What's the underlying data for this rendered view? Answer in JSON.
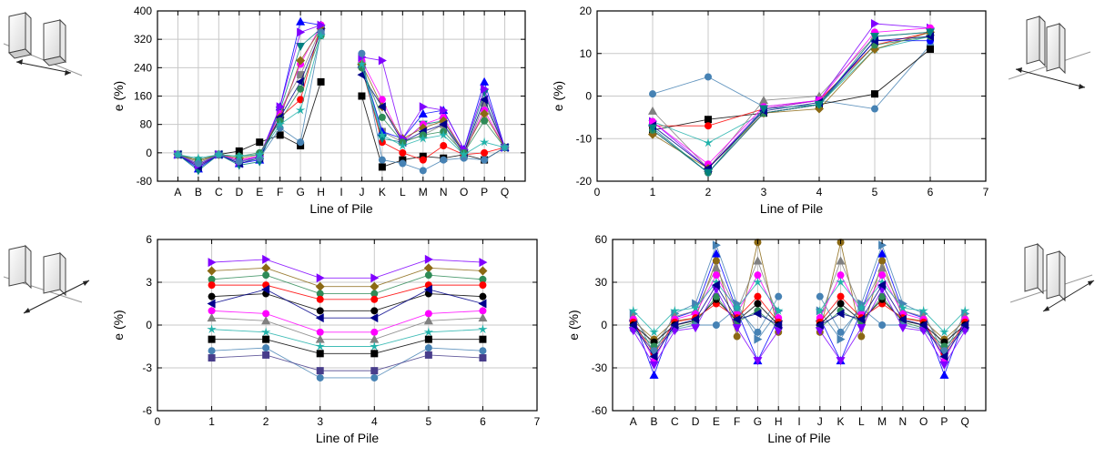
{
  "chart_data": [
    {
      "type": "scatter",
      "xlabel": "Line of Pile",
      "ylabel": "e (%)",
      "xcategories": [
        "A",
        "B",
        "C",
        "D",
        "E",
        "F",
        "G",
        "H",
        "I",
        "J",
        "K",
        "L",
        "M",
        "N",
        "O",
        "P",
        "Q"
      ],
      "ylim": [
        -80,
        400
      ],
      "yticks": [
        -80,
        0,
        80,
        160,
        240,
        320,
        400
      ],
      "grid": true,
      "series": [
        {
          "color": "#808080",
          "marker": "square",
          "values": [
            -5,
            -35,
            -5,
            -25,
            -15,
            120,
            220,
            350,
            null,
            250,
            60,
            30,
            50,
            80,
            -10,
            140,
            15
          ]
        },
        {
          "color": "#000000",
          "marker": "square",
          "values": [
            -5,
            -35,
            -5,
            5,
            30,
            50,
            20,
            200,
            null,
            160,
            -40,
            -20,
            -10,
            -15,
            -5,
            -20,
            15
          ]
        },
        {
          "color": "#ff0000",
          "marker": "circle",
          "values": [
            -5,
            -20,
            -5,
            -20,
            -10,
            100,
            150,
            360,
            null,
            240,
            30,
            0,
            -20,
            20,
            -5,
            0,
            15
          ]
        },
        {
          "color": "#0000ff",
          "marker": "triangle-up",
          "values": [
            -5,
            -45,
            -5,
            -30,
            -20,
            130,
            370,
            360,
            null,
            250,
            60,
            40,
            110,
            120,
            10,
            200,
            15
          ]
        },
        {
          "color": "#008080",
          "marker": "triangle-down",
          "values": [
            -5,
            -50,
            -5,
            -35,
            -25,
            120,
            300,
            350,
            null,
            240,
            40,
            30,
            80,
            90,
            0,
            170,
            15
          ]
        },
        {
          "color": "#ff00ff",
          "marker": "circle",
          "values": [
            -5,
            -30,
            -5,
            -20,
            -10,
            110,
            250,
            360,
            null,
            260,
            150,
            30,
            80,
            100,
            0,
            120,
            15
          ]
        },
        {
          "color": "#8B6914",
          "marker": "diamond",
          "values": [
            -5,
            -25,
            -5,
            -15,
            -5,
            100,
            260,
            350,
            null,
            250,
            130,
            40,
            70,
            90,
            5,
            110,
            15
          ]
        },
        {
          "color": "#00008B",
          "marker": "triangle-left",
          "values": [
            -5,
            -40,
            -5,
            -30,
            -15,
            100,
            200,
            340,
            null,
            220,
            130,
            30,
            60,
            80,
            0,
            150,
            15
          ]
        },
        {
          "color": "#8000ff",
          "marker": "triangle-right",
          "values": [
            -5,
            -35,
            -5,
            -25,
            -10,
            130,
            340,
            360,
            null,
            270,
            260,
            40,
            130,
            120,
            10,
            180,
            15
          ]
        },
        {
          "color": "#2E8B57",
          "marker": "circle",
          "values": [
            -5,
            -20,
            -5,
            -10,
            0,
            90,
            180,
            330,
            null,
            240,
            100,
            30,
            50,
            60,
            0,
            90,
            15
          ]
        },
        {
          "color": "#4682B4",
          "marker": "circle",
          "values": [
            -5,
            -30,
            -5,
            -25,
            -15,
            70,
            30,
            340,
            null,
            280,
            -20,
            -30,
            -50,
            -20,
            -15,
            -20,
            15
          ]
        },
        {
          "color": "#20B2AA",
          "marker": "star",
          "values": [
            -5,
            -15,
            -5,
            -10,
            -5,
            80,
            120,
            330,
            null,
            250,
            50,
            20,
            40,
            50,
            -5,
            30,
            15
          ]
        }
      ]
    },
    {
      "type": "scatter",
      "xlabel": "Line of Pile",
      "ylabel": "e (%)",
      "xlim": [
        0,
        7
      ],
      "xticks": [
        0,
        1,
        2,
        3,
        4,
        5,
        6,
        7
      ],
      "ylim": [
        -20,
        20
      ],
      "yticks": [
        -20,
        -10,
        0,
        10,
        20
      ],
      "grid": true,
      "x": [
        1,
        2,
        3,
        4,
        5,
        6
      ],
      "series": [
        {
          "color": "#4682B4",
          "marker": "circle",
          "values": [
            0.5,
            4.5,
            -2.5,
            -1,
            -3,
            12
          ]
        },
        {
          "color": "#000000",
          "marker": "square",
          "values": [
            -8,
            -5.5,
            -4,
            -2,
            0.5,
            11
          ]
        },
        {
          "color": "#ff0000",
          "marker": "circle",
          "values": [
            -7,
            -7,
            -3,
            -1,
            12,
            15
          ]
        },
        {
          "color": "#20B2AA",
          "marker": "star",
          "values": [
            -6,
            -11,
            -4,
            -2,
            11,
            14
          ]
        },
        {
          "color": "#0000ff",
          "marker": "circle",
          "values": [
            -8,
            -18,
            -4,
            -2,
            13,
            13
          ]
        },
        {
          "color": "#808080",
          "marker": "triangle-up",
          "values": [
            -3.5,
            -17,
            -1,
            0,
            14,
            15
          ]
        },
        {
          "color": "#8000ff",
          "marker": "triangle-right",
          "values": [
            -6,
            -17,
            -3,
            -1,
            17,
            16
          ]
        },
        {
          "color": "#ff00ff",
          "marker": "circle",
          "values": [
            -6,
            -16,
            -2.5,
            -1,
            15,
            16
          ]
        },
        {
          "color": "#8B6914",
          "marker": "diamond",
          "values": [
            -9,
            -17,
            -4,
            -3,
            11,
            15
          ]
        },
        {
          "color": "#2E8B57",
          "marker": "circle",
          "values": [
            -8,
            -18,
            -4,
            -2,
            12,
            14
          ]
        },
        {
          "color": "#00008B",
          "marker": "triangle-left",
          "values": [
            -7,
            -17,
            -3.5,
            -1.5,
            13,
            14
          ]
        },
        {
          "color": "#008080",
          "marker": "triangle-down",
          "values": [
            -7.5,
            -18,
            -3,
            -2,
            14,
            15
          ]
        }
      ]
    },
    {
      "type": "scatter",
      "xlabel": "Line of Pile",
      "ylabel": "e (%)",
      "xlim": [
        0,
        7
      ],
      "xticks": [
        0,
        1,
        2,
        3,
        4,
        5,
        6,
        7
      ],
      "ylim": [
        -6,
        6
      ],
      "yticks": [
        -6,
        -3,
        0,
        3,
        6
      ],
      "grid": true,
      "x": [
        1,
        2,
        3,
        4,
        5,
        6
      ],
      "series": [
        {
          "color": "#8000ff",
          "marker": "triangle-right",
          "values": [
            4.4,
            4.6,
            3.3,
            3.3,
            4.6,
            4.4
          ]
        },
        {
          "color": "#8B6914",
          "marker": "diamond",
          "values": [
            3.8,
            4.0,
            2.7,
            2.7,
            4.0,
            3.8
          ]
        },
        {
          "color": "#2E8B57",
          "marker": "circle",
          "values": [
            3.2,
            3.5,
            2.2,
            2.2,
            3.5,
            3.2
          ]
        },
        {
          "color": "#ff0000",
          "marker": "circle",
          "values": [
            2.8,
            2.8,
            1.8,
            1.8,
            2.8,
            2.8
          ]
        },
        {
          "color": "#000000",
          "marker": "circle",
          "values": [
            2.0,
            2.2,
            1.0,
            1.0,
            2.2,
            2.0
          ]
        },
        {
          "color": "#00008B",
          "marker": "triangle-left",
          "values": [
            1.5,
            2.5,
            0.5,
            0.5,
            2.5,
            1.5
          ]
        },
        {
          "color": "#ff00ff",
          "marker": "circle",
          "values": [
            1.0,
            0.8,
            -0.5,
            -0.5,
            0.8,
            1.0
          ]
        },
        {
          "color": "#808080",
          "marker": "triangle-up",
          "values": [
            0.5,
            0.3,
            -1.0,
            -1.0,
            0.3,
            0.5
          ]
        },
        {
          "color": "#20B2AA",
          "marker": "star",
          "values": [
            -0.3,
            -0.5,
            -1.5,
            -1.5,
            -0.5,
            -0.3
          ]
        },
        {
          "color": "#000000",
          "marker": "square",
          "values": [
            -1.0,
            -1.0,
            -2.0,
            -2.0,
            -1.0,
            -1.0
          ]
        },
        {
          "color": "#4682B4",
          "marker": "circle",
          "values": [
            -1.8,
            -1.6,
            -3.7,
            -3.7,
            -1.6,
            -1.8
          ]
        },
        {
          "color": "#483D8B",
          "marker": "square",
          "values": [
            -2.3,
            -2.1,
            -3.2,
            -3.2,
            -2.1,
            -2.3
          ]
        }
      ]
    },
    {
      "type": "scatter",
      "xlabel": "Line of Pile",
      "ylabel": "e (%)",
      "xcategories": [
        "A",
        "B",
        "C",
        "D",
        "E",
        "F",
        "G",
        "H",
        "I",
        "J",
        "K",
        "L",
        "M",
        "N",
        "O",
        "P",
        "Q"
      ],
      "ylim": [
        -60,
        60
      ],
      "yticks": [
        -60,
        -30,
        0,
        30,
        60
      ],
      "grid": true,
      "series": [
        {
          "color": "#0000ff",
          "marker": "triangle-up",
          "values": [
            5,
            -35,
            5,
            10,
            50,
            10,
            -25,
            5,
            null,
            5,
            -25,
            10,
            50,
            10,
            5,
            -35,
            5
          ]
        },
        {
          "color": "#4682B4",
          "marker": "triangle-right",
          "values": [
            8,
            -20,
            8,
            15,
            56,
            15,
            -10,
            10,
            null,
            10,
            -10,
            15,
            56,
            15,
            8,
            -20,
            8
          ]
        },
        {
          "color": "#8B6914",
          "marker": "circle",
          "values": [
            3,
            -10,
            3,
            5,
            45,
            -8,
            58,
            -5,
            null,
            -5,
            58,
            -8,
            45,
            5,
            3,
            -10,
            3
          ]
        },
        {
          "color": "#808080",
          "marker": "triangle-up",
          "values": [
            6,
            -15,
            6,
            10,
            40,
            10,
            45,
            5,
            null,
            5,
            45,
            10,
            40,
            10,
            6,
            -15,
            6
          ]
        },
        {
          "color": "#ff00ff",
          "marker": "circle",
          "values": [
            4,
            -25,
            4,
            8,
            35,
            8,
            35,
            5,
            null,
            5,
            35,
            8,
            35,
            8,
            4,
            -25,
            4
          ]
        },
        {
          "color": "#ff0000",
          "marker": "circle",
          "values": [
            2,
            -20,
            2,
            5,
            15,
            5,
            20,
            2,
            null,
            2,
            20,
            5,
            15,
            5,
            2,
            -20,
            2
          ]
        },
        {
          "color": "#000000",
          "marker": "circle",
          "values": [
            0,
            -12,
            0,
            3,
            18,
            3,
            15,
            0,
            null,
            0,
            15,
            3,
            18,
            3,
            0,
            -12,
            0
          ]
        },
        {
          "color": "#2E8B57",
          "marker": "circle",
          "values": [
            -2,
            -15,
            -2,
            2,
            20,
            2,
            10,
            -2,
            null,
            -2,
            10,
            2,
            20,
            2,
            -2,
            -15,
            -2
          ]
        },
        {
          "color": "#4682B4",
          "marker": "circle",
          "values": [
            -3,
            -18,
            -3,
            0,
            0,
            12,
            -5,
            20,
            null,
            20,
            -5,
            12,
            0,
            0,
            -3,
            -18,
            -3
          ]
        },
        {
          "color": "#8000ff",
          "marker": "triangle-down",
          "values": [
            -4,
            -28,
            -4,
            -2,
            25,
            -2,
            -25,
            -4,
            null,
            -4,
            -25,
            -2,
            25,
            -2,
            -4,
            -28,
            -4
          ]
        },
        {
          "color": "#20B2AA",
          "marker": "star",
          "values": [
            10,
            -5,
            10,
            12,
            30,
            12,
            30,
            10,
            null,
            10,
            30,
            12,
            30,
            12,
            10,
            -5,
            10
          ]
        },
        {
          "color": "#00008B",
          "marker": "triangle-left",
          "values": [
            0,
            -22,
            0,
            4,
            28,
            4,
            8,
            0,
            null,
            0,
            8,
            4,
            28,
            4,
            0,
            -22,
            0
          ]
        }
      ]
    }
  ]
}
